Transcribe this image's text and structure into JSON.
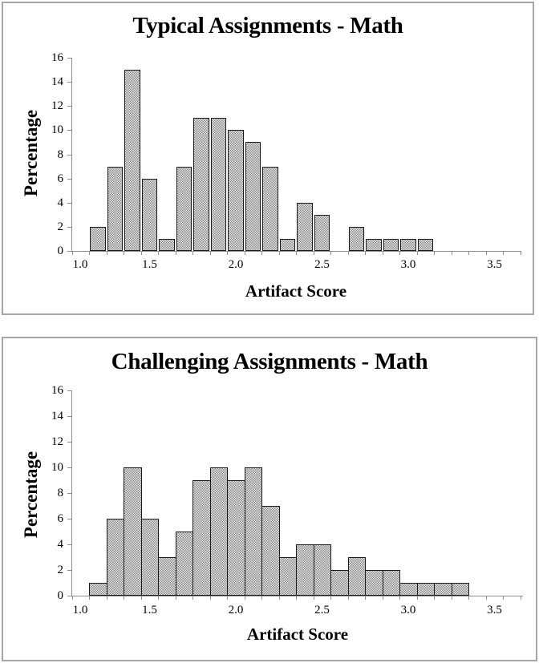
{
  "chart_data": [
    {
      "type": "bar",
      "title": "Typical Assignments - Math",
      "xlabel": "Artifact Score",
      "ylabel": "Percentage",
      "ylim": [
        0,
        16
      ],
      "yticks": [
        0,
        2,
        4,
        6,
        8,
        10,
        12,
        14,
        16
      ],
      "xlim": [
        1.0,
        3.6
      ],
      "xtick_labels": [
        "1.0",
        "1.5",
        "2.0",
        "2.5",
        "3.0",
        "3.5"
      ],
      "grid": false,
      "legend": null,
      "categories": [
        1.2,
        1.3,
        1.4,
        1.5,
        1.6,
        1.7,
        1.8,
        1.9,
        2.0,
        2.1,
        2.2,
        2.3,
        2.4,
        2.5,
        2.6,
        2.7,
        2.8,
        2.9,
        3.0,
        3.1
      ],
      "values": [
        2,
        7,
        15,
        6,
        1,
        7,
        11,
        11,
        10,
        9,
        7,
        1,
        4,
        3,
        0,
        2,
        1,
        1,
        1,
        1
      ]
    },
    {
      "type": "bar",
      "title": "Challenging Assignments - Math",
      "xlabel": "Artifact Score",
      "ylabel": "Percentage",
      "ylim": [
        0,
        16
      ],
      "yticks": [
        0,
        2,
        4,
        6,
        8,
        10,
        12,
        14,
        16
      ],
      "xlim": [
        1.0,
        3.6
      ],
      "xtick_labels": [
        "1.0",
        "1.5",
        "2.0",
        "2.5",
        "3.0",
        "3.5"
      ],
      "grid": false,
      "legend": null,
      "categories": [
        1.2,
        1.3,
        1.4,
        1.5,
        1.6,
        1.7,
        1.8,
        1.9,
        2.0,
        2.1,
        2.2,
        2.3,
        2.4,
        2.5,
        2.6,
        2.7,
        2.8,
        2.9,
        3.0,
        3.1,
        3.2,
        3.3
      ],
      "values": [
        1,
        6,
        10,
        6,
        3,
        5,
        9,
        10,
        9,
        10,
        7,
        3,
        4,
        4,
        2,
        3,
        2,
        2,
        1,
        1,
        1,
        1
      ]
    }
  ],
  "colors": {
    "bar_border": "#1a1a1a",
    "bar_pattern_dark": "#8a8a8a",
    "bar_pattern_light": "#e8e8e8",
    "axis": "#8c8c8c",
    "panel_border": "#a6a6a6"
  }
}
